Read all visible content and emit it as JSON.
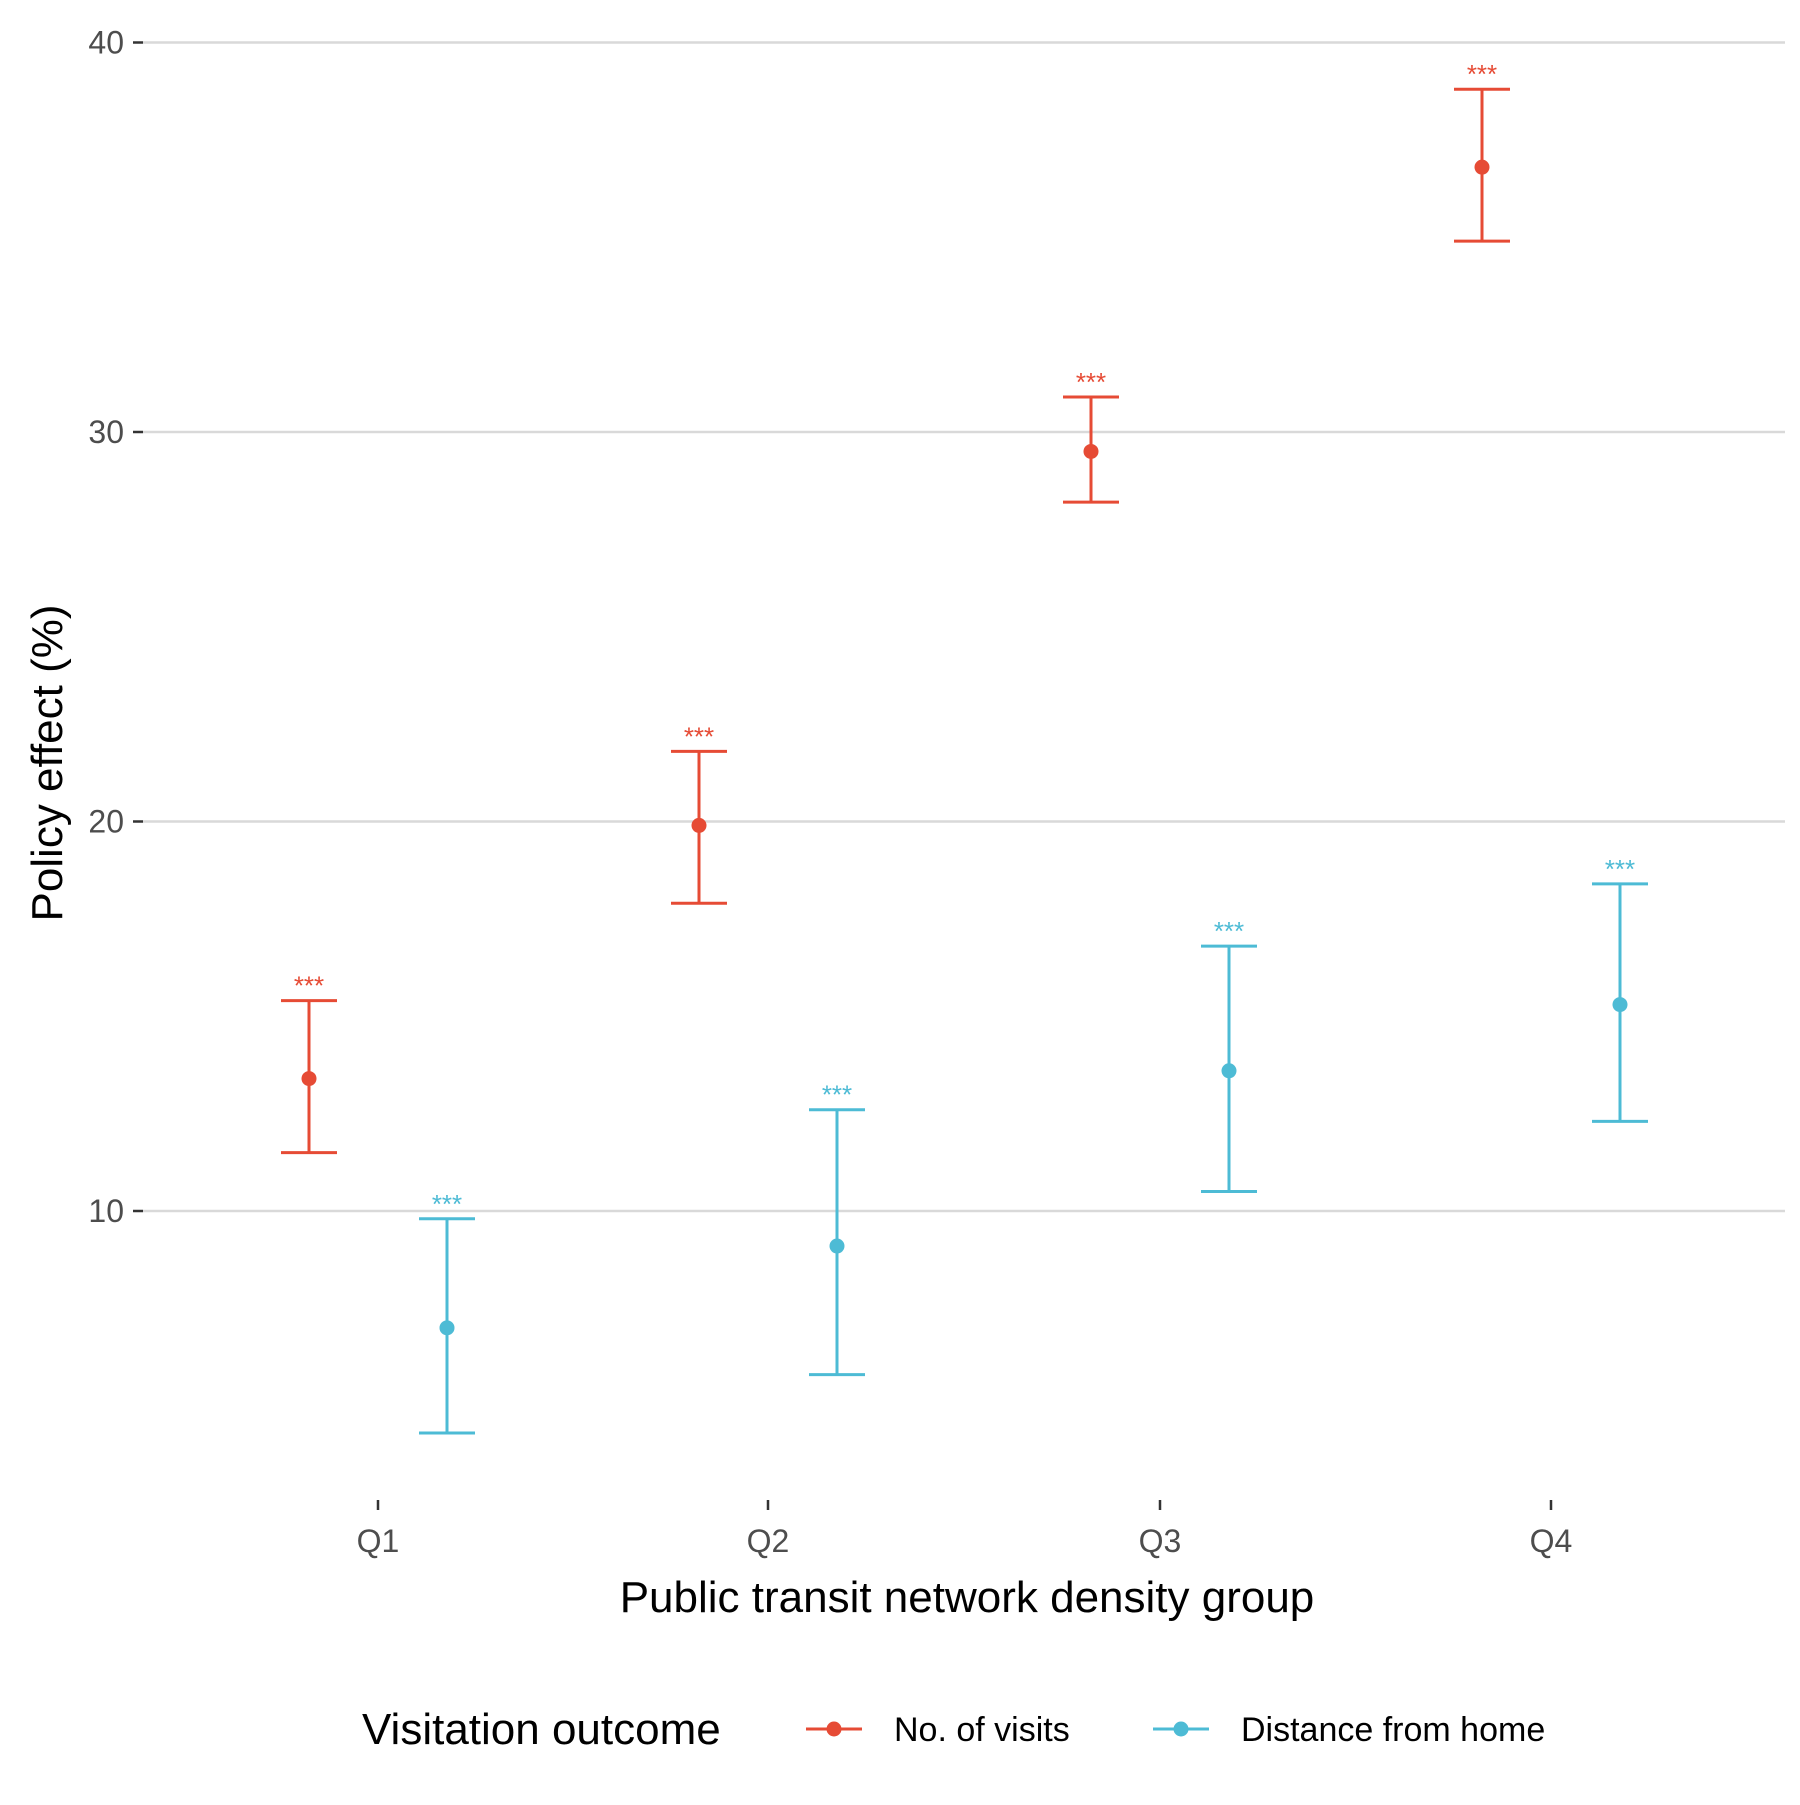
{
  "chart_data": {
    "type": "scatter",
    "subtype": "point-errorbar",
    "title": "",
    "xlabel": "Public transit network density group",
    "ylabel": "Policy effect (%)",
    "categories": [
      "Q1",
      "Q2",
      "Q3",
      "Q4"
    ],
    "ylim": [
      2.5,
      40.5
    ],
    "yticks": [
      10,
      20,
      30,
      40
    ],
    "grid": "horizontal major",
    "legend": {
      "title": "Visitation outcome",
      "position": "bottom"
    },
    "series": [
      {
        "name": "No. of visits",
        "color": "#E64B35",
        "values": [
          13.4,
          19.9,
          29.5,
          36.8
        ],
        "lower": [
          11.5,
          17.9,
          28.2,
          34.9
        ],
        "upper": [
          15.4,
          21.8,
          30.9,
          38.8
        ],
        "significance": [
          "***",
          "***",
          "***",
          "***"
        ]
      },
      {
        "name": "Distance from home",
        "color": "#4DBBD5",
        "values": [
          7.0,
          9.1,
          13.6,
          15.3
        ],
        "lower": [
          4.3,
          5.8,
          10.5,
          12.3
        ],
        "upper": [
          9.8,
          12.6,
          16.8,
          18.4
        ],
        "significance": [
          "***",
          "***",
          "***",
          "***"
        ]
      }
    ]
  }
}
